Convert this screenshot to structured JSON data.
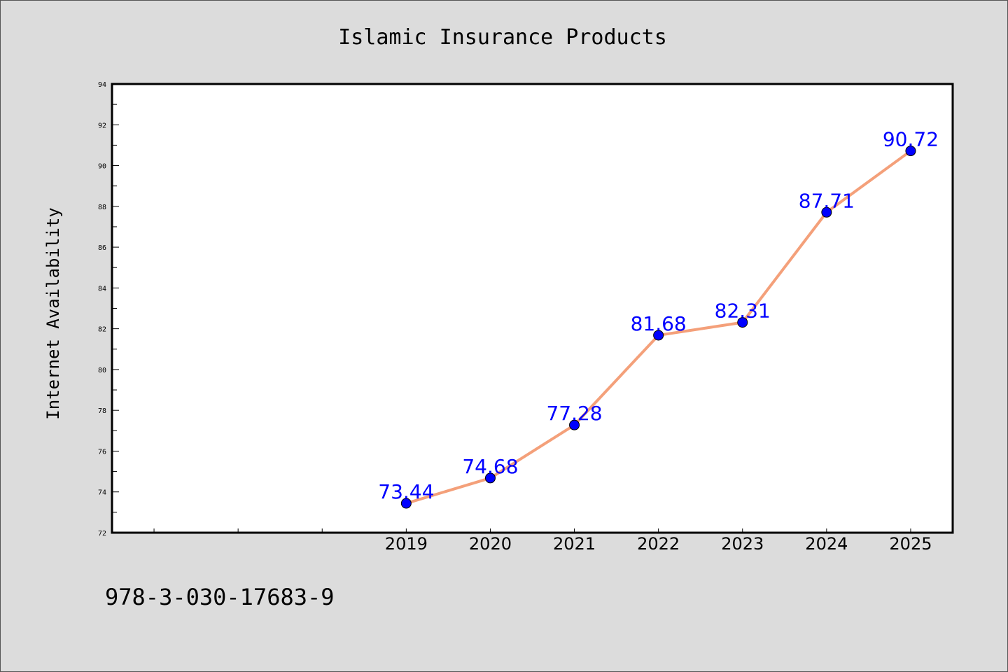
{
  "chart_data": {
    "type": "line",
    "title": "Islamic Insurance Products",
    "xlabel": "",
    "ylabel": "Internet Availability",
    "categories": [
      "2019",
      "2020",
      "2021",
      "2022",
      "2023",
      "2024",
      "2025"
    ],
    "series": [
      {
        "values": [
          73.44,
          74.68,
          77.28,
          81.68,
          82.31,
          87.71,
          90.72
        ],
        "data_labels": [
          "73.44",
          "74.68",
          "77.28",
          "81.68",
          "82.31",
          "87.71",
          "90.72"
        ]
      }
    ],
    "ylim": [
      72,
      94
    ],
    "yticks": [
      "72",
      "74",
      "76",
      "78",
      "80",
      "82",
      "84",
      "86",
      "88",
      "90",
      "92",
      "94"
    ],
    "xlim": [
      2015.5,
      2025.5
    ],
    "grid": false,
    "line_color": "#f4a07a",
    "marker_color": "#0000ff",
    "label_color": "#0000ff",
    "background_color": "#dcdcdc",
    "plot_background": "#ffffff"
  },
  "footer": {
    "isbn": "978-3-030-17683-9"
  }
}
